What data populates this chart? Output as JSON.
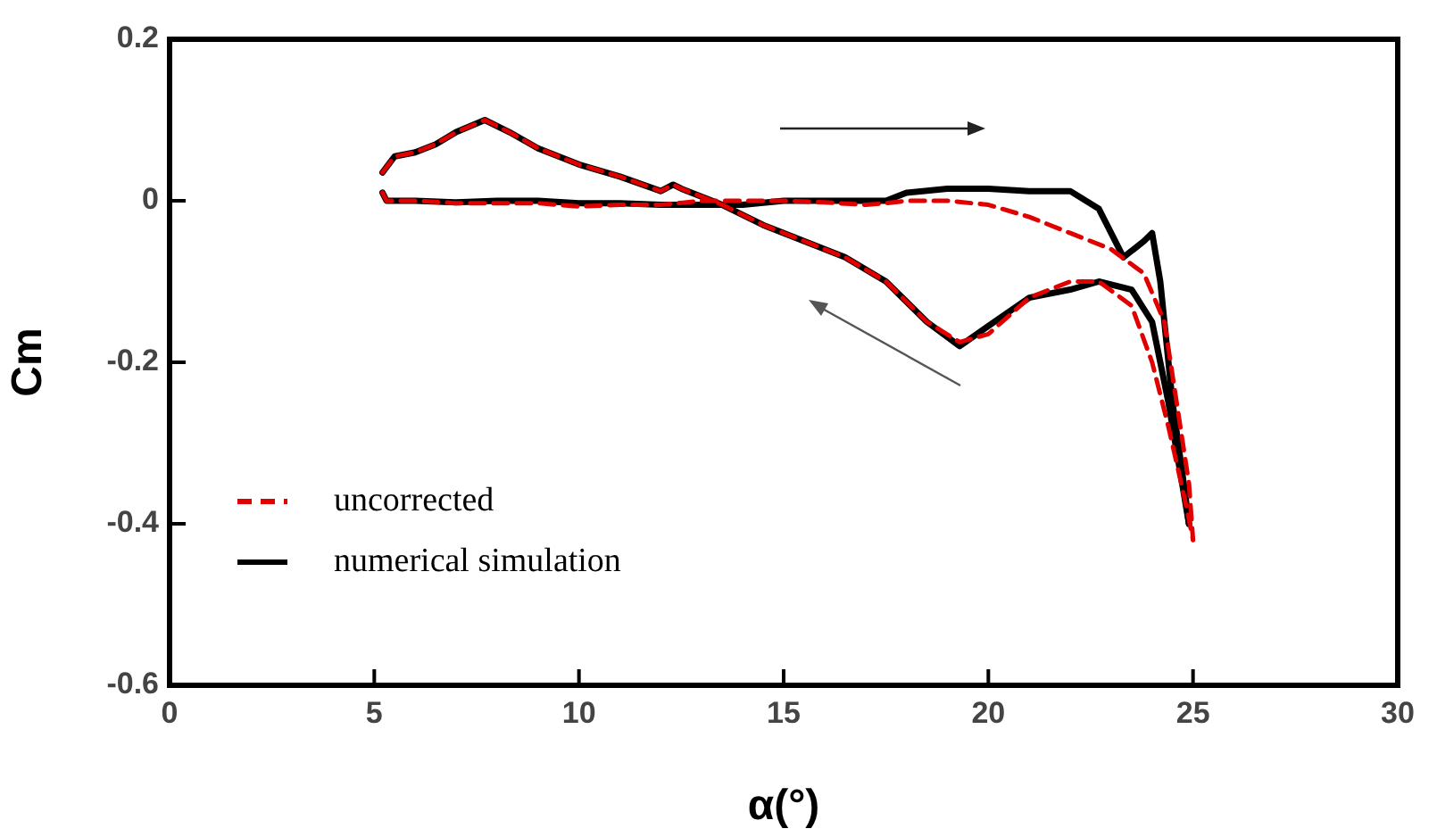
{
  "chart_data": {
    "type": "line",
    "xlabel": "α(°)",
    "ylabel": "Cm",
    "xlim": [
      0,
      30
    ],
    "xticks": [
      0,
      5,
      10,
      15,
      20,
      25,
      30
    ],
    "ylim": [
      -0.6,
      0.2
    ],
    "yticks": [
      -0.6,
      -0.4,
      -0.2,
      0,
      0.2
    ],
    "grid": false,
    "legend": "bottom left",
    "marker": "none",
    "series": [
      {
        "name": "uncorrected",
        "color": "#e00000",
        "line_style": "dashed",
        "x": [
          5.2,
          5.3,
          6,
          7,
          8,
          9,
          10,
          11,
          12,
          13,
          14,
          15,
          16,
          17,
          17.5,
          18,
          19,
          20,
          21,
          22,
          23,
          23.8,
          24.3,
          24.6,
          24.9,
          25
        ],
        "values": [
          0.01,
          0,
          0,
          -0.003,
          -0.003,
          -0.003,
          -0.007,
          -0.005,
          -0.005,
          0,
          0,
          0,
          -0.002,
          -0.005,
          -0.003,
          0,
          0,
          -0.005,
          -0.02,
          -0.04,
          -0.06,
          -0.09,
          -0.15,
          -0.25,
          -0.35,
          -0.42
        ]
      },
      {
        "color": "#e00000",
        "line_style": "dashed",
        "x": [
          5.2,
          5.5,
          6,
          6.5,
          7,
          7.7,
          8.3,
          9,
          10,
          11,
          12,
          12.3,
          12.5,
          13.5,
          14.5,
          15.5,
          16.5,
          17.5,
          18.5,
          19.3,
          20,
          21,
          22,
          22.7,
          23.5,
          24,
          24.4,
          24.8,
          25
        ],
        "values": [
          0.035,
          0.055,
          0.06,
          0.07,
          0.085,
          0.1,
          0.085,
          0.065,
          0.045,
          0.03,
          0.012,
          0.02,
          0.015,
          -0.005,
          -0.03,
          -0.05,
          -0.07,
          -0.1,
          -0.15,
          -0.175,
          -0.165,
          -0.12,
          -0.1,
          -0.1,
          -0.13,
          -0.2,
          -0.28,
          -0.37,
          -0.42
        ]
      },
      {
        "name": "numerical simulation",
        "color": "#000000",
        "line_style": "solid",
        "x": [
          5.2,
          5.3,
          6,
          7,
          8,
          9,
          10,
          11,
          12,
          13,
          14,
          15,
          16,
          17,
          17.5,
          18,
          19,
          20,
          21,
          22,
          22.7,
          23.3,
          23.8,
          24,
          24.2,
          24.5,
          24.8,
          24.9
        ],
        "values": [
          0.01,
          0,
          0,
          -0.002,
          0,
          0,
          -0.003,
          -0.003,
          -0.005,
          -0.005,
          -0.005,
          0,
          0,
          0,
          0,
          0.01,
          0.015,
          0.015,
          0.012,
          0.012,
          -0.01,
          -0.07,
          -0.05,
          -0.04,
          -0.1,
          -0.25,
          -0.36,
          -0.4
        ]
      },
      {
        "color": "#000000",
        "line_style": "solid",
        "x": [
          5.2,
          5.5,
          6,
          6.5,
          7,
          7.7,
          8.3,
          9,
          10,
          11,
          12,
          12.3,
          12.5,
          13.5,
          14.5,
          15.5,
          16.5,
          17.5,
          18.5,
          19.3,
          20,
          21,
          22,
          22.7,
          23.5,
          24,
          24.4,
          24.7,
          24.9
        ],
        "values": [
          0.035,
          0.055,
          0.06,
          0.07,
          0.085,
          0.1,
          0.085,
          0.065,
          0.045,
          0.03,
          0.012,
          0.02,
          0.015,
          -0.005,
          -0.03,
          -0.05,
          -0.07,
          -0.1,
          -0.15,
          -0.18,
          -0.155,
          -0.12,
          -0.11,
          -0.1,
          -0.11,
          -0.15,
          -0.25,
          -0.34,
          -0.4
        ]
      }
    ]
  }
}
